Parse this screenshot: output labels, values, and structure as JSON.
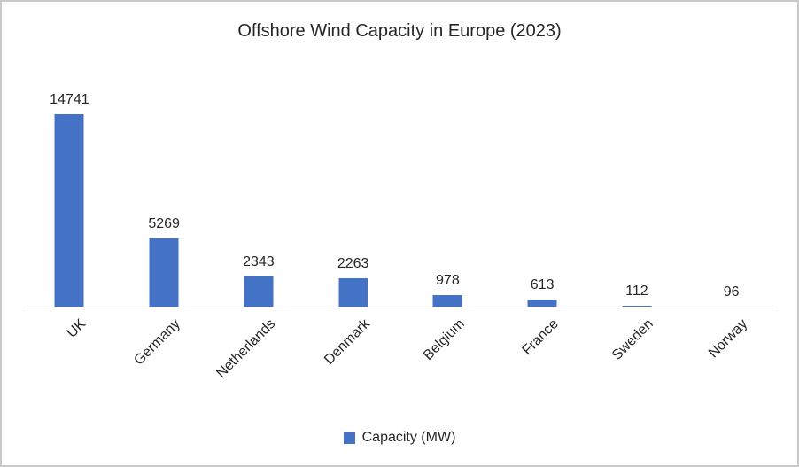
{
  "title": "Offshore Wind Capacity in Europe (2023)",
  "legend": {
    "label": "Capacity (MW)",
    "marker_icon": "legend-square-icon"
  },
  "colors": {
    "bar": "#4472C4",
    "axis_line": "#D9D9D9",
    "text": "#262626",
    "border": "#C9C9C9",
    "background": "#FFFFFF"
  },
  "chart_data": {
    "type": "bar",
    "title": "Offshore Wind Capacity in Europe (2023)",
    "categories": [
      "UK",
      "Germany",
      "Netherlands",
      "Denmark",
      "Belgium",
      "France",
      "Sweden",
      "Norway"
    ],
    "series": [
      {
        "name": "Capacity (MW)",
        "values": [
          14741,
          5269,
          2343,
          2263,
          978,
          613,
          112,
          96
        ]
      }
    ],
    "xlabel": "",
    "ylabel": "",
    "ylim": [
      0,
      14741
    ],
    "grid": false,
    "y_axis_visible": false,
    "data_labels": true,
    "x_tick_rotation_deg": -45,
    "legend_position": "bottom"
  }
}
